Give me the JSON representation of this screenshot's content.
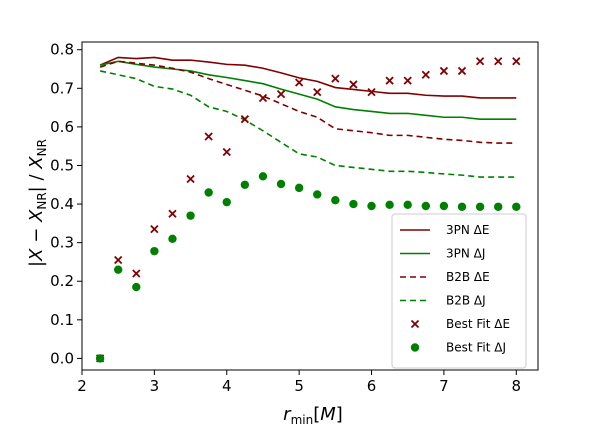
{
  "chart_data": {
    "type": "line",
    "xlabel": "r_min[M]",
    "ylabel": "|X − X_NR| / X_NR",
    "xlim": [
      2.0,
      8.3
    ],
    "ylim": [
      -0.03,
      0.82
    ],
    "xticks": [
      2,
      3,
      4,
      5,
      6,
      7,
      8
    ],
    "yticks": [
      0.0,
      0.1,
      0.2,
      0.3,
      0.4,
      0.5,
      0.6,
      0.7,
      0.8
    ],
    "grid": false,
    "legend_position": "lower-right",
    "series": [
      {
        "name": "3PN ΔE",
        "style": "solid",
        "color": "#800000",
        "x": [
          2.25,
          2.5,
          2.75,
          3.0,
          3.25,
          3.5,
          3.75,
          4.0,
          4.25,
          4.5,
          4.75,
          5.0,
          5.25,
          5.5,
          5.75,
          6.0,
          6.25,
          6.5,
          6.75,
          7.0,
          7.25,
          7.5,
          7.75,
          8.0
        ],
        "y": [
          0.76,
          0.78,
          0.777,
          0.78,
          0.773,
          0.773,
          0.768,
          0.762,
          0.76,
          0.752,
          0.74,
          0.727,
          0.718,
          0.702,
          0.697,
          0.692,
          0.687,
          0.687,
          0.682,
          0.68,
          0.68,
          0.675,
          0.675,
          0.675
        ]
      },
      {
        "name": "3PN ΔJ",
        "style": "solid",
        "color": "#008000",
        "x": [
          2.25,
          2.5,
          2.75,
          3.0,
          3.25,
          3.5,
          3.75,
          4.0,
          4.25,
          4.5,
          4.75,
          5.0,
          5.25,
          5.5,
          5.75,
          6.0,
          6.25,
          6.5,
          6.75,
          7.0,
          7.25,
          7.5,
          7.75,
          8.0
        ],
        "y": [
          0.76,
          0.77,
          0.762,
          0.755,
          0.75,
          0.745,
          0.735,
          0.728,
          0.72,
          0.712,
          0.698,
          0.685,
          0.672,
          0.652,
          0.645,
          0.64,
          0.635,
          0.635,
          0.63,
          0.625,
          0.625,
          0.62,
          0.62,
          0.62
        ]
      },
      {
        "name": "B2B ΔE",
        "style": "dashed",
        "color": "#800000",
        "x": [
          2.25,
          2.5,
          2.75,
          3.0,
          3.25,
          3.5,
          3.75,
          4.0,
          4.25,
          4.5,
          4.75,
          5.0,
          5.25,
          5.5,
          5.75,
          6.0,
          6.25,
          6.5,
          6.75,
          7.0,
          7.25,
          7.5,
          7.75,
          8.0
        ],
        "y": [
          0.755,
          0.77,
          0.765,
          0.76,
          0.752,
          0.742,
          0.725,
          0.71,
          0.695,
          0.68,
          0.66,
          0.64,
          0.625,
          0.595,
          0.59,
          0.585,
          0.578,
          0.578,
          0.573,
          0.568,
          0.565,
          0.56,
          0.558,
          0.558
        ]
      },
      {
        "name": "B2B ΔJ",
        "style": "dashed",
        "color": "#008000",
        "x": [
          2.25,
          2.5,
          2.75,
          3.0,
          3.25,
          3.5,
          3.75,
          4.0,
          4.25,
          4.5,
          4.75,
          5.0,
          5.25,
          5.5,
          5.75,
          6.0,
          6.25,
          6.5,
          6.75,
          7.0,
          7.25,
          7.5,
          7.75,
          8.0
        ],
        "y": [
          0.745,
          0.735,
          0.725,
          0.705,
          0.698,
          0.682,
          0.652,
          0.64,
          0.618,
          0.59,
          0.56,
          0.53,
          0.522,
          0.5,
          0.495,
          0.49,
          0.485,
          0.485,
          0.482,
          0.478,
          0.475,
          0.47,
          0.47,
          0.47
        ]
      },
      {
        "name": "Best Fit ΔE",
        "style": "x-marker",
        "color": "#800000",
        "x": [
          2.25,
          2.5,
          2.75,
          3.0,
          3.25,
          3.5,
          3.75,
          4.0,
          4.25,
          4.5,
          4.75,
          5.0,
          5.25,
          5.5,
          5.75,
          6.0,
          6.25,
          6.5,
          6.75,
          7.0,
          7.25,
          7.5,
          7.75,
          8.0
        ],
        "y": [
          0.0,
          0.255,
          0.22,
          0.335,
          0.375,
          0.465,
          0.575,
          0.535,
          0.62,
          0.675,
          0.685,
          0.715,
          0.69,
          0.725,
          0.71,
          0.69,
          0.72,
          0.72,
          0.735,
          0.745,
          0.745,
          0.77,
          0.77,
          0.77
        ]
      },
      {
        "name": "Best Fit ΔJ",
        "style": "dot-marker",
        "color": "#008000",
        "x": [
          2.25,
          2.5,
          2.75,
          3.0,
          3.25,
          3.5,
          3.75,
          4.0,
          4.25,
          4.5,
          4.75,
          5.0,
          5.25,
          5.5,
          5.75,
          6.0,
          6.25,
          6.5,
          6.75,
          7.0,
          7.25,
          7.5,
          7.75,
          8.0
        ],
        "y": [
          0.0,
          0.23,
          0.185,
          0.278,
          0.31,
          0.37,
          0.43,
          0.405,
          0.45,
          0.472,
          0.452,
          0.442,
          0.425,
          0.41,
          0.4,
          0.395,
          0.398,
          0.398,
          0.395,
          0.395,
          0.393,
          0.393,
          0.393,
          0.393
        ]
      }
    ]
  }
}
